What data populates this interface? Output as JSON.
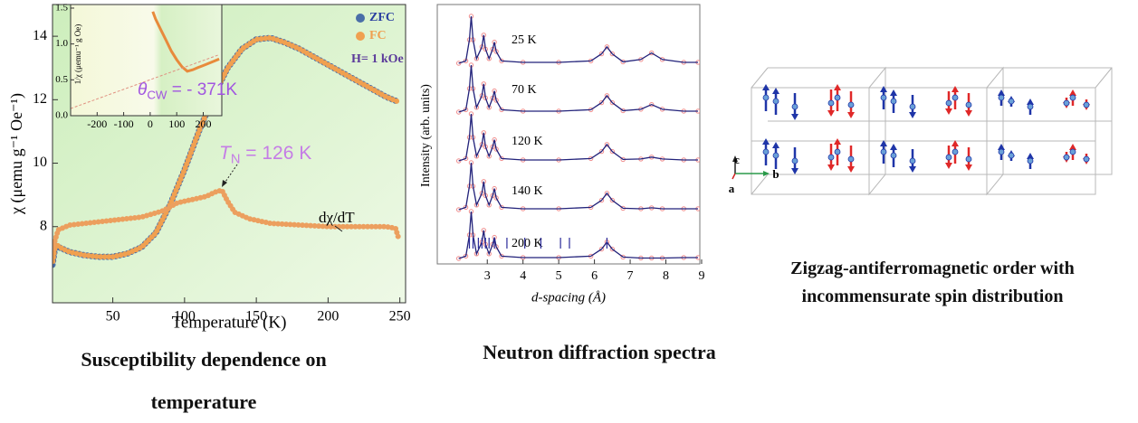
{
  "chart_data": [
    {
      "type": "line",
      "xlabel": "Temperature (K)",
      "ylabel": "χ (μemu g⁻¹ Oe⁻¹)",
      "xlim": [
        8,
        254
      ],
      "ylim": [
        5.6,
        15
      ],
      "xticks": [
        50,
        100,
        150,
        200,
        250
      ],
      "yticks": [
        8,
        10,
        12,
        14
      ],
      "series": [
        {
          "name": "ZFC",
          "color": "#4a6ea8",
          "x": [
            8,
            10,
            15,
            20,
            30,
            40,
            50,
            60,
            70,
            80,
            90,
            100,
            110,
            120,
            130,
            140,
            150,
            160,
            170,
            180,
            190,
            200,
            210,
            220,
            230,
            240,
            248
          ],
          "values": [
            6.8,
            7.4,
            7.3,
            7.2,
            7.1,
            7.05,
            7.05,
            7.15,
            7.35,
            7.8,
            8.7,
            9.8,
            11.0,
            12.1,
            13.0,
            13.6,
            13.9,
            13.95,
            13.8,
            13.6,
            13.35,
            13.1,
            12.85,
            12.6,
            12.35,
            12.1,
            11.95
          ]
        },
        {
          "name": "FC",
          "color": "#f0a050",
          "x": [
            8,
            10,
            15,
            20,
            30,
            40,
            50,
            60,
            70,
            80,
            90,
            100,
            110,
            120,
            130,
            140,
            150,
            160,
            170,
            180,
            190,
            200,
            210,
            220,
            230,
            240,
            248
          ],
          "values": [
            6.85,
            7.45,
            7.3,
            7.2,
            7.1,
            7.05,
            7.05,
            7.15,
            7.35,
            7.8,
            8.7,
            9.8,
            11.0,
            12.1,
            13.0,
            13.6,
            13.9,
            13.95,
            13.8,
            13.6,
            13.35,
            13.1,
            12.85,
            12.6,
            12.35,
            12.1,
            11.95
          ]
        },
        {
          "name": "dχ/dT",
          "color": "#ec9f5e",
          "x": [
            8,
            12,
            20,
            30,
            50,
            70,
            85,
            95,
            105,
            115,
            122,
            126,
            130,
            135,
            145,
            160,
            180,
            200,
            220,
            240,
            247,
            249
          ],
          "values": [
            7.3,
            7.9,
            8.05,
            8.1,
            8.2,
            8.3,
            8.5,
            8.75,
            8.85,
            8.95,
            9.1,
            9.15,
            8.8,
            8.45,
            8.25,
            8.1,
            8.05,
            8.0,
            8.0,
            8.0,
            7.95,
            7.65
          ]
        }
      ],
      "annotations": [
        {
          "symbol": "T",
          "subscript": "N",
          "text": " = 126 K",
          "color": "#c57de6"
        },
        {
          "text": "H= 1 kOe",
          "color": "#5b3a9a"
        }
      ],
      "inset": {
        "ylabel": "1/χ (μemu⁻¹ g Oe)",
        "xlim": [
          -300,
          270
        ],
        "ylim": [
          0,
          1.55
        ],
        "xticks": [
          -200,
          -100,
          0,
          100,
          200
        ],
        "yticks": [
          {
            "value": 0,
            "label": "0.0"
          },
          {
            "value": 0.5,
            "label": "0.5"
          },
          {
            "value": 1,
            "label": "1.0"
          },
          {
            "value": 1.5,
            "label": "1.5"
          }
        ],
        "series": [
          {
            "color": "#e88a3c",
            "x": [
              10,
              20,
              40,
              60,
              80,
              100,
              120,
              140,
              160,
              180,
              200,
              220,
              240,
              260
            ],
            "values": [
              1.45,
              1.35,
              1.2,
              1.05,
              0.9,
              0.78,
              0.68,
              0.62,
              0.64,
              0.67,
              0.7,
              0.73,
              0.76,
              0.79
            ]
          },
          {
            "color": "#e09080",
            "dashed": true,
            "x": [
              -300,
              260
            ],
            "values": [
              0.1,
              0.85
            ]
          }
        ],
        "annotation": {
          "symbol": "θ",
          "subscript": "CW",
          "text": " = - 371K",
          "color": "#a155e0"
        }
      }
    },
    {
      "type": "line",
      "xlabel": "d-spacing (Å)",
      "ylabel": "Intensity (arb. units)",
      "xlim": [
        1.6,
        8.95
      ],
      "xticks": [
        3,
        4,
        5,
        6,
        7,
        8,
        9
      ],
      "color": "#22227a",
      "point_color": "#f08c8c",
      "x": [
        2.2,
        2.4,
        2.5,
        2.55,
        2.6,
        2.7,
        2.85,
        2.9,
        2.95,
        3.05,
        3.15,
        3.2,
        3.25,
        3.4,
        4,
        5,
        5.9,
        6.2,
        6.35,
        6.5,
        6.8,
        7.3,
        7.6,
        7.9,
        8.5,
        8.9
      ],
      "series": [
        {
          "name": "25 K",
          "values": [
            0,
            0.05,
            0.5,
            1.0,
            0.5,
            0.1,
            0.35,
            0.6,
            0.3,
            0.1,
            0.3,
            0.45,
            0.25,
            0.05,
            0.02,
            0.02,
            0.05,
            0.2,
            0.35,
            0.2,
            0.03,
            0.08,
            0.22,
            0.08,
            0.02,
            0.02
          ]
        },
        {
          "name": "70 K",
          "values": [
            0,
            0.05,
            0.5,
            1.0,
            0.5,
            0.1,
            0.35,
            0.6,
            0.3,
            0.1,
            0.3,
            0.45,
            0.25,
            0.05,
            0.02,
            0.02,
            0.05,
            0.2,
            0.35,
            0.2,
            0.03,
            0.06,
            0.16,
            0.06,
            0.02,
            0.02
          ]
        },
        {
          "name": "120 K",
          "values": [
            0,
            0.05,
            0.5,
            1.0,
            0.5,
            0.1,
            0.35,
            0.6,
            0.3,
            0.1,
            0.3,
            0.45,
            0.25,
            0.05,
            0.02,
            0.02,
            0.05,
            0.2,
            0.35,
            0.2,
            0.03,
            0.04,
            0.08,
            0.04,
            0.02,
            0.02
          ]
        },
        {
          "name": "140 K",
          "values": [
            0,
            0.05,
            0.5,
            1.0,
            0.5,
            0.1,
            0.35,
            0.6,
            0.3,
            0.1,
            0.3,
            0.45,
            0.25,
            0.05,
            0.02,
            0.02,
            0.05,
            0.2,
            0.35,
            0.2,
            0.03,
            0.02,
            0.04,
            0.02,
            0.02,
            0.02
          ]
        },
        {
          "name": "200 K",
          "values": [
            0,
            0.05,
            0.5,
            1.0,
            0.5,
            0.1,
            0.35,
            0.6,
            0.3,
            0.1,
            0.3,
            0.45,
            0.25,
            0.05,
            0.02,
            0.02,
            0.05,
            0.2,
            0.35,
            0.2,
            0.03,
            0.01,
            0.01,
            0.01,
            0.02,
            0.02
          ]
        }
      ],
      "reflections": [
        2.5,
        2.6,
        2.75,
        2.85,
        2.95,
        3.05,
        3.2,
        3.55,
        4.05,
        4.5,
        5.05,
        5.3,
        6.35
      ]
    }
  ],
  "diagram": {
    "axes": [
      "c",
      "a",
      "b"
    ]
  },
  "captions": [
    "Susceptibility dependence on temperature",
    "Neutron diffraction spectra",
    "Zigzag-antiferromagnetic order with incommensurate spin distribution"
  ]
}
